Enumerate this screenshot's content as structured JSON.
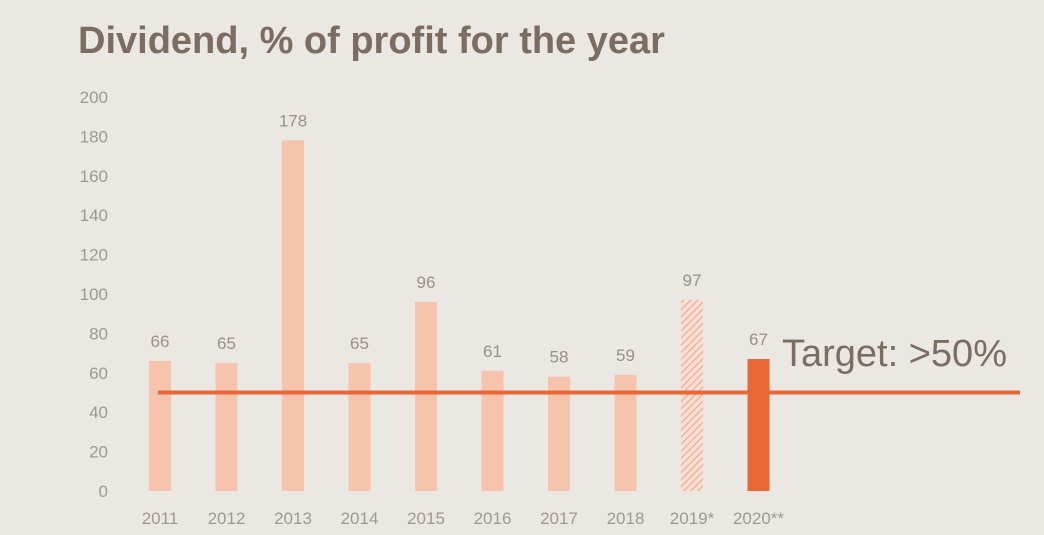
{
  "chart_data": {
    "type": "bar",
    "title": "Dividend, % of profit for the year",
    "categories": [
      "2011",
      "2012",
      "2013",
      "2014",
      "2015",
      "2016",
      "2017",
      "2018",
      "2019*",
      "2020**"
    ],
    "values": [
      66,
      65,
      178,
      65,
      96,
      61,
      58,
      59,
      97,
      67
    ],
    "bar_styles": [
      "regular",
      "regular",
      "regular",
      "regular",
      "regular",
      "regular",
      "regular",
      "regular",
      "hatched",
      "highlight"
    ],
    "yticks": [
      "0",
      "20",
      "40",
      "60",
      "80",
      "100",
      "120",
      "140",
      "160",
      "180",
      "200"
    ],
    "ylim": [
      0,
      200
    ],
    "grid": false,
    "target_line": {
      "value": 50,
      "label": "Target: >50%"
    },
    "xlabel": "",
    "ylabel": ""
  },
  "colors": {
    "background": "#ebe8e4",
    "bar": "#f6c3ad",
    "bar_hatch": "#f0a88f",
    "highlight": "#ea6735",
    "target_line": "#ea6735",
    "title": "#7b6d62"
  }
}
